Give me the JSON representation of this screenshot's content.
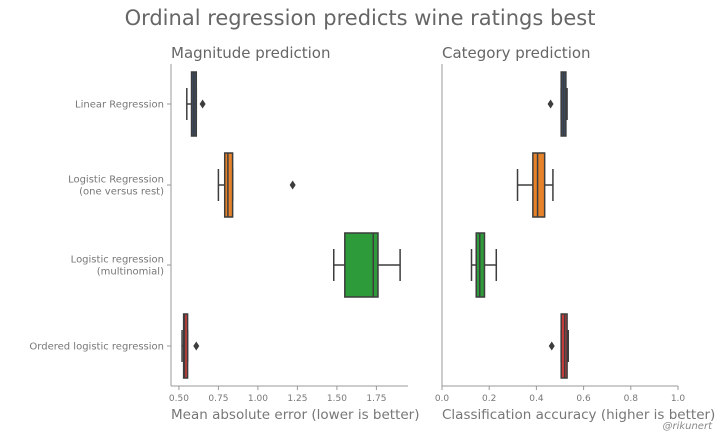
{
  "title": "Ordinal regression predicts wine ratings best",
  "credit": "@rikunert",
  "chart_data": [
    {
      "type": "box",
      "title": "Magnitude prediction",
      "xlabel": "Mean absolute error (lower is better)",
      "xlim": [
        0.45,
        1.95
      ],
      "xticks": [
        "0.50",
        "0.75",
        "1.00",
        "1.25",
        "1.50",
        "1.75"
      ],
      "show_categories": true,
      "boxes": [
        {
          "category": "Linear Regression",
          "color": "#3b4f6b",
          "whisker_low": 0.55,
          "q1": 0.58,
          "median": 0.595,
          "q3": 0.61,
          "whisker_high": 0.61,
          "outliers": [
            0.65
          ]
        },
        {
          "category": "Logistic Regression\n(one versus rest)",
          "color": "#e6822a",
          "whisker_low": 0.75,
          "q1": 0.79,
          "median": 0.81,
          "q3": 0.84,
          "whisker_high": 0.84,
          "outliers": [
            1.22
          ]
        },
        {
          "category": "Logistic regression\n(multinomial)",
          "color": "#2e9b3a",
          "whisker_low": 1.48,
          "q1": 1.55,
          "median": 1.73,
          "q3": 1.76,
          "whisker_high": 1.9,
          "outliers": []
        },
        {
          "category": "Ordered logistic regression",
          "color": "#c63d3d",
          "whisker_low": 0.52,
          "q1": 0.53,
          "median": 0.535,
          "q3": 0.555,
          "whisker_high": 0.555,
          "outliers": [
            0.61
          ]
        }
      ]
    },
    {
      "type": "box",
      "title": "Category prediction",
      "xlabel": "Classification accuracy (higher is better)",
      "xlim": [
        0.0,
        1.0
      ],
      "xticks": [
        "0.0",
        "0.2",
        "0.4",
        "0.6",
        "0.8",
        "1.0"
      ],
      "show_categories": false,
      "boxes": [
        {
          "category": "Linear Regression",
          "color": "#3b4f6b",
          "whisker_low": 0.505,
          "q1": 0.505,
          "median": 0.515,
          "q3": 0.525,
          "whisker_high": 0.53,
          "outliers": [
            0.46
          ]
        },
        {
          "category": "Logistic Regression\n(one versus rest)",
          "color": "#e6822a",
          "whisker_low": 0.32,
          "q1": 0.385,
          "median": 0.405,
          "q3": 0.435,
          "whisker_high": 0.47,
          "outliers": []
        },
        {
          "category": "Logistic regression\n(multinomial)",
          "color": "#2e9b3a",
          "whisker_low": 0.125,
          "q1": 0.145,
          "median": 0.16,
          "q3": 0.18,
          "whisker_high": 0.23,
          "outliers": []
        },
        {
          "category": "Ordered logistic regression",
          "color": "#c63d3d",
          "whisker_low": 0.505,
          "q1": 0.505,
          "median": 0.52,
          "q3": 0.53,
          "whisker_high": 0.535,
          "outliers": [
            0.465
          ]
        }
      ]
    }
  ]
}
